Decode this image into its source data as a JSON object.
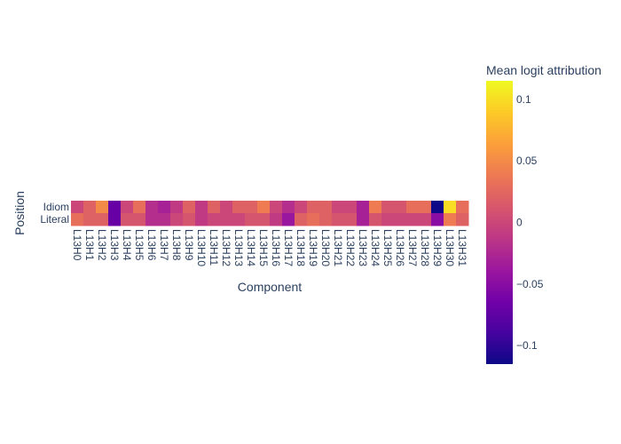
{
  "chart_data": {
    "type": "heatmap",
    "title": "",
    "xlabel": "Component",
    "ylabel": "Position",
    "x": [
      "L13H0",
      "L13H1",
      "L13H2",
      "L13H3",
      "L13H4",
      "L13H5",
      "L13H6",
      "L13H7",
      "L13H8",
      "L13H9",
      "L13H10",
      "L13H11",
      "L13H12",
      "L13H13",
      "L13H14",
      "L13H15",
      "L13H16",
      "L13H17",
      "L13H18",
      "L13H19",
      "L13H20",
      "L13H21",
      "L13H22",
      "L13H23",
      "L13H24",
      "L13H25",
      "L13H26",
      "L13H27",
      "L13H28",
      "L13H29",
      "L13H30",
      "L13H31"
    ],
    "y": [
      "Idiom",
      "Literal"
    ],
    "z": [
      [
        0.0,
        0.02,
        0.05,
        -0.07,
        0.0,
        0.03,
        -0.02,
        -0.03,
        -0.01,
        0.02,
        -0.01,
        0.02,
        0.0,
        0.02,
        0.02,
        0.04,
        0.0,
        -0.02,
        0.0,
        0.02,
        0.02,
        0.0,
        0.0,
        -0.03,
        0.04,
        0.01,
        0.01,
        0.03,
        0.03,
        -0.12,
        0.1,
        0.03
      ],
      [
        0.03,
        0.02,
        0.02,
        -0.07,
        0.01,
        0.01,
        -0.02,
        -0.02,
        0.0,
        0.01,
        -0.01,
        0.0,
        0.0,
        0.0,
        0.01,
        0.01,
        -0.01,
        -0.04,
        0.02,
        0.03,
        0.02,
        0.01,
        0.01,
        -0.03,
        0.01,
        0.0,
        0.0,
        0.0,
        0.0,
        -0.05,
        0.04,
        0.02
      ]
    ],
    "colorbar": {
      "title": "Mean logit attribution",
      "zmin": -0.115,
      "zmax": 0.115,
      "ticks": [
        0.1,
        0.05,
        0,
        -0.05,
        -0.1
      ],
      "tick_labels": [
        "0.1",
        "0.05",
        "0",
        "−0.05",
        "−0.1"
      ],
      "colorscale": "plasma"
    }
  }
}
